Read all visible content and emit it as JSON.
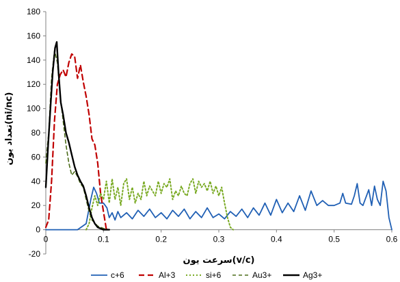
{
  "chart_data": {
    "type": "line",
    "xlabel": "سرعت یون(v/c)",
    "ylabel": "تعداد یون(ni/nc)",
    "xlim": [
      0,
      0.6
    ],
    "ylim": [
      -20,
      180
    ],
    "x_ticks": [
      "0",
      "0.1",
      "0.2",
      "0.3",
      "0.4",
      "0.5",
      "0.6"
    ],
    "y_ticks": [
      "-20",
      "0",
      "20",
      "40",
      "60",
      "80",
      "100",
      "120",
      "140",
      "160",
      "180"
    ],
    "grid": false,
    "legend_position": "bottom",
    "series": [
      {
        "name": "c+6",
        "color": "#1f5fb4",
        "dash": "solid",
        "width": 1.8,
        "points": [
          [
            0,
            0
          ],
          [
            0.055,
            0
          ],
          [
            0.07,
            5
          ],
          [
            0.078,
            25
          ],
          [
            0.083,
            35
          ],
          [
            0.088,
            30
          ],
          [
            0.093,
            22
          ],
          [
            0.1,
            22
          ],
          [
            0.106,
            18
          ],
          [
            0.11,
            10
          ],
          [
            0.115,
            14
          ],
          [
            0.12,
            8
          ],
          [
            0.125,
            15
          ],
          [
            0.13,
            10
          ],
          [
            0.14,
            14
          ],
          [
            0.15,
            9
          ],
          [
            0.16,
            16
          ],
          [
            0.17,
            11
          ],
          [
            0.18,
            17
          ],
          [
            0.19,
            10
          ],
          [
            0.2,
            14
          ],
          [
            0.21,
            9
          ],
          [
            0.22,
            16
          ],
          [
            0.23,
            11
          ],
          [
            0.24,
            17
          ],
          [
            0.25,
            9
          ],
          [
            0.26,
            15
          ],
          [
            0.27,
            10
          ],
          [
            0.28,
            18
          ],
          [
            0.29,
            10
          ],
          [
            0.3,
            13
          ],
          [
            0.31,
            9
          ],
          [
            0.32,
            15
          ],
          [
            0.33,
            11
          ],
          [
            0.34,
            17
          ],
          [
            0.35,
            10
          ],
          [
            0.36,
            18
          ],
          [
            0.37,
            12
          ],
          [
            0.38,
            22
          ],
          [
            0.39,
            12
          ],
          [
            0.4,
            25
          ],
          [
            0.41,
            14
          ],
          [
            0.42,
            22
          ],
          [
            0.43,
            15
          ],
          [
            0.44,
            28
          ],
          [
            0.45,
            16
          ],
          [
            0.46,
            32
          ],
          [
            0.47,
            20
          ],
          [
            0.48,
            24
          ],
          [
            0.49,
            20
          ],
          [
            0.5,
            20
          ],
          [
            0.51,
            22
          ],
          [
            0.515,
            30
          ],
          [
            0.52,
            22
          ],
          [
            0.53,
            21
          ],
          [
            0.535,
            28
          ],
          [
            0.54,
            38
          ],
          [
            0.545,
            22
          ],
          [
            0.55,
            20
          ],
          [
            0.56,
            33
          ],
          [
            0.565,
            20
          ],
          [
            0.57,
            36
          ],
          [
            0.575,
            25
          ],
          [
            0.58,
            20
          ],
          [
            0.585,
            40
          ],
          [
            0.59,
            32
          ],
          [
            0.595,
            10
          ],
          [
            0.6,
            0
          ]
        ]
      },
      {
        "name": "Al+3",
        "color": "#c00000",
        "dash": "8,5",
        "width": 2.2,
        "points": [
          [
            0,
            2
          ],
          [
            0.005,
            8
          ],
          [
            0.01,
            40
          ],
          [
            0.015,
            90
          ],
          [
            0.02,
            120
          ],
          [
            0.025,
            128
          ],
          [
            0.03,
            132
          ],
          [
            0.035,
            126
          ],
          [
            0.04,
            138
          ],
          [
            0.045,
            145
          ],
          [
            0.05,
            143
          ],
          [
            0.055,
            125
          ],
          [
            0.06,
            136
          ],
          [
            0.065,
            122
          ],
          [
            0.07,
            110
          ],
          [
            0.075,
            95
          ],
          [
            0.08,
            75
          ],
          [
            0.085,
            70
          ],
          [
            0.09,
            55
          ],
          [
            0.095,
            30
          ],
          [
            0.1,
            15
          ],
          [
            0.105,
            0
          ]
        ]
      },
      {
        "name": "si+6",
        "color": "#7aaa24",
        "dash": "2,3",
        "width": 2.0,
        "points": [
          [
            0.07,
            0
          ],
          [
            0.075,
            5
          ],
          [
            0.08,
            18
          ],
          [
            0.085,
            28
          ],
          [
            0.09,
            20
          ],
          [
            0.095,
            30
          ],
          [
            0.1,
            25
          ],
          [
            0.105,
            40
          ],
          [
            0.11,
            22
          ],
          [
            0.115,
            42
          ],
          [
            0.12,
            25
          ],
          [
            0.125,
            35
          ],
          [
            0.13,
            20
          ],
          [
            0.135,
            38
          ],
          [
            0.14,
            42
          ],
          [
            0.145,
            25
          ],
          [
            0.15,
            35
          ],
          [
            0.155,
            22
          ],
          [
            0.16,
            30
          ],
          [
            0.165,
            25
          ],
          [
            0.17,
            40
          ],
          [
            0.175,
            28
          ],
          [
            0.18,
            36
          ],
          [
            0.185,
            32
          ],
          [
            0.19,
            28
          ],
          [
            0.195,
            40
          ],
          [
            0.2,
            30
          ],
          [
            0.205,
            38
          ],
          [
            0.21,
            35
          ],
          [
            0.215,
            42
          ],
          [
            0.22,
            25
          ],
          [
            0.225,
            32
          ],
          [
            0.23,
            28
          ],
          [
            0.235,
            36
          ],
          [
            0.24,
            30
          ],
          [
            0.245,
            28
          ],
          [
            0.25,
            38
          ],
          [
            0.255,
            42
          ],
          [
            0.26,
            30
          ],
          [
            0.265,
            40
          ],
          [
            0.27,
            35
          ],
          [
            0.275,
            38
          ],
          [
            0.28,
            32
          ],
          [
            0.285,
            40
          ],
          [
            0.29,
            30
          ],
          [
            0.295,
            36
          ],
          [
            0.3,
            28
          ],
          [
            0.305,
            35
          ],
          [
            0.31,
            22
          ],
          [
            0.315,
            10
          ],
          [
            0.32,
            2
          ],
          [
            0.325,
            0
          ]
        ]
      },
      {
        "name": "Au3+",
        "color": "#4b6b18",
        "dash": "5,4",
        "width": 1.6,
        "points": [
          [
            0,
            55
          ],
          [
            0.005,
            80
          ],
          [
            0.01,
            125
          ],
          [
            0.015,
            148
          ],
          [
            0.02,
            138
          ],
          [
            0.025,
            110
          ],
          [
            0.03,
            90
          ],
          [
            0.035,
            70
          ],
          [
            0.04,
            55
          ],
          [
            0.045,
            45
          ],
          [
            0.05,
            48
          ],
          [
            0.055,
            44
          ],
          [
            0.06,
            38
          ],
          [
            0.065,
            35
          ],
          [
            0.07,
            25
          ],
          [
            0.075,
            15
          ],
          [
            0.08,
            8
          ],
          [
            0.09,
            3
          ],
          [
            0.1,
            1
          ],
          [
            0.11,
            0
          ]
        ]
      },
      {
        "name": "Ag3+",
        "color": "#000000",
        "dash": "solid",
        "width": 2.4,
        "points": [
          [
            0,
            35
          ],
          [
            0.004,
            70
          ],
          [
            0.008,
            100
          ],
          [
            0.012,
            130
          ],
          [
            0.016,
            150
          ],
          [
            0.019,
            155
          ],
          [
            0.022,
            130
          ],
          [
            0.026,
            105
          ],
          [
            0.03,
            95
          ],
          [
            0.035,
            80
          ],
          [
            0.04,
            72
          ],
          [
            0.045,
            62
          ],
          [
            0.05,
            52
          ],
          [
            0.055,
            45
          ],
          [
            0.06,
            40
          ],
          [
            0.065,
            36
          ],
          [
            0.07,
            28
          ],
          [
            0.075,
            18
          ],
          [
            0.08,
            10
          ],
          [
            0.085,
            5
          ],
          [
            0.09,
            2
          ],
          [
            0.1,
            0
          ],
          [
            0.11,
            0
          ]
        ]
      }
    ]
  }
}
